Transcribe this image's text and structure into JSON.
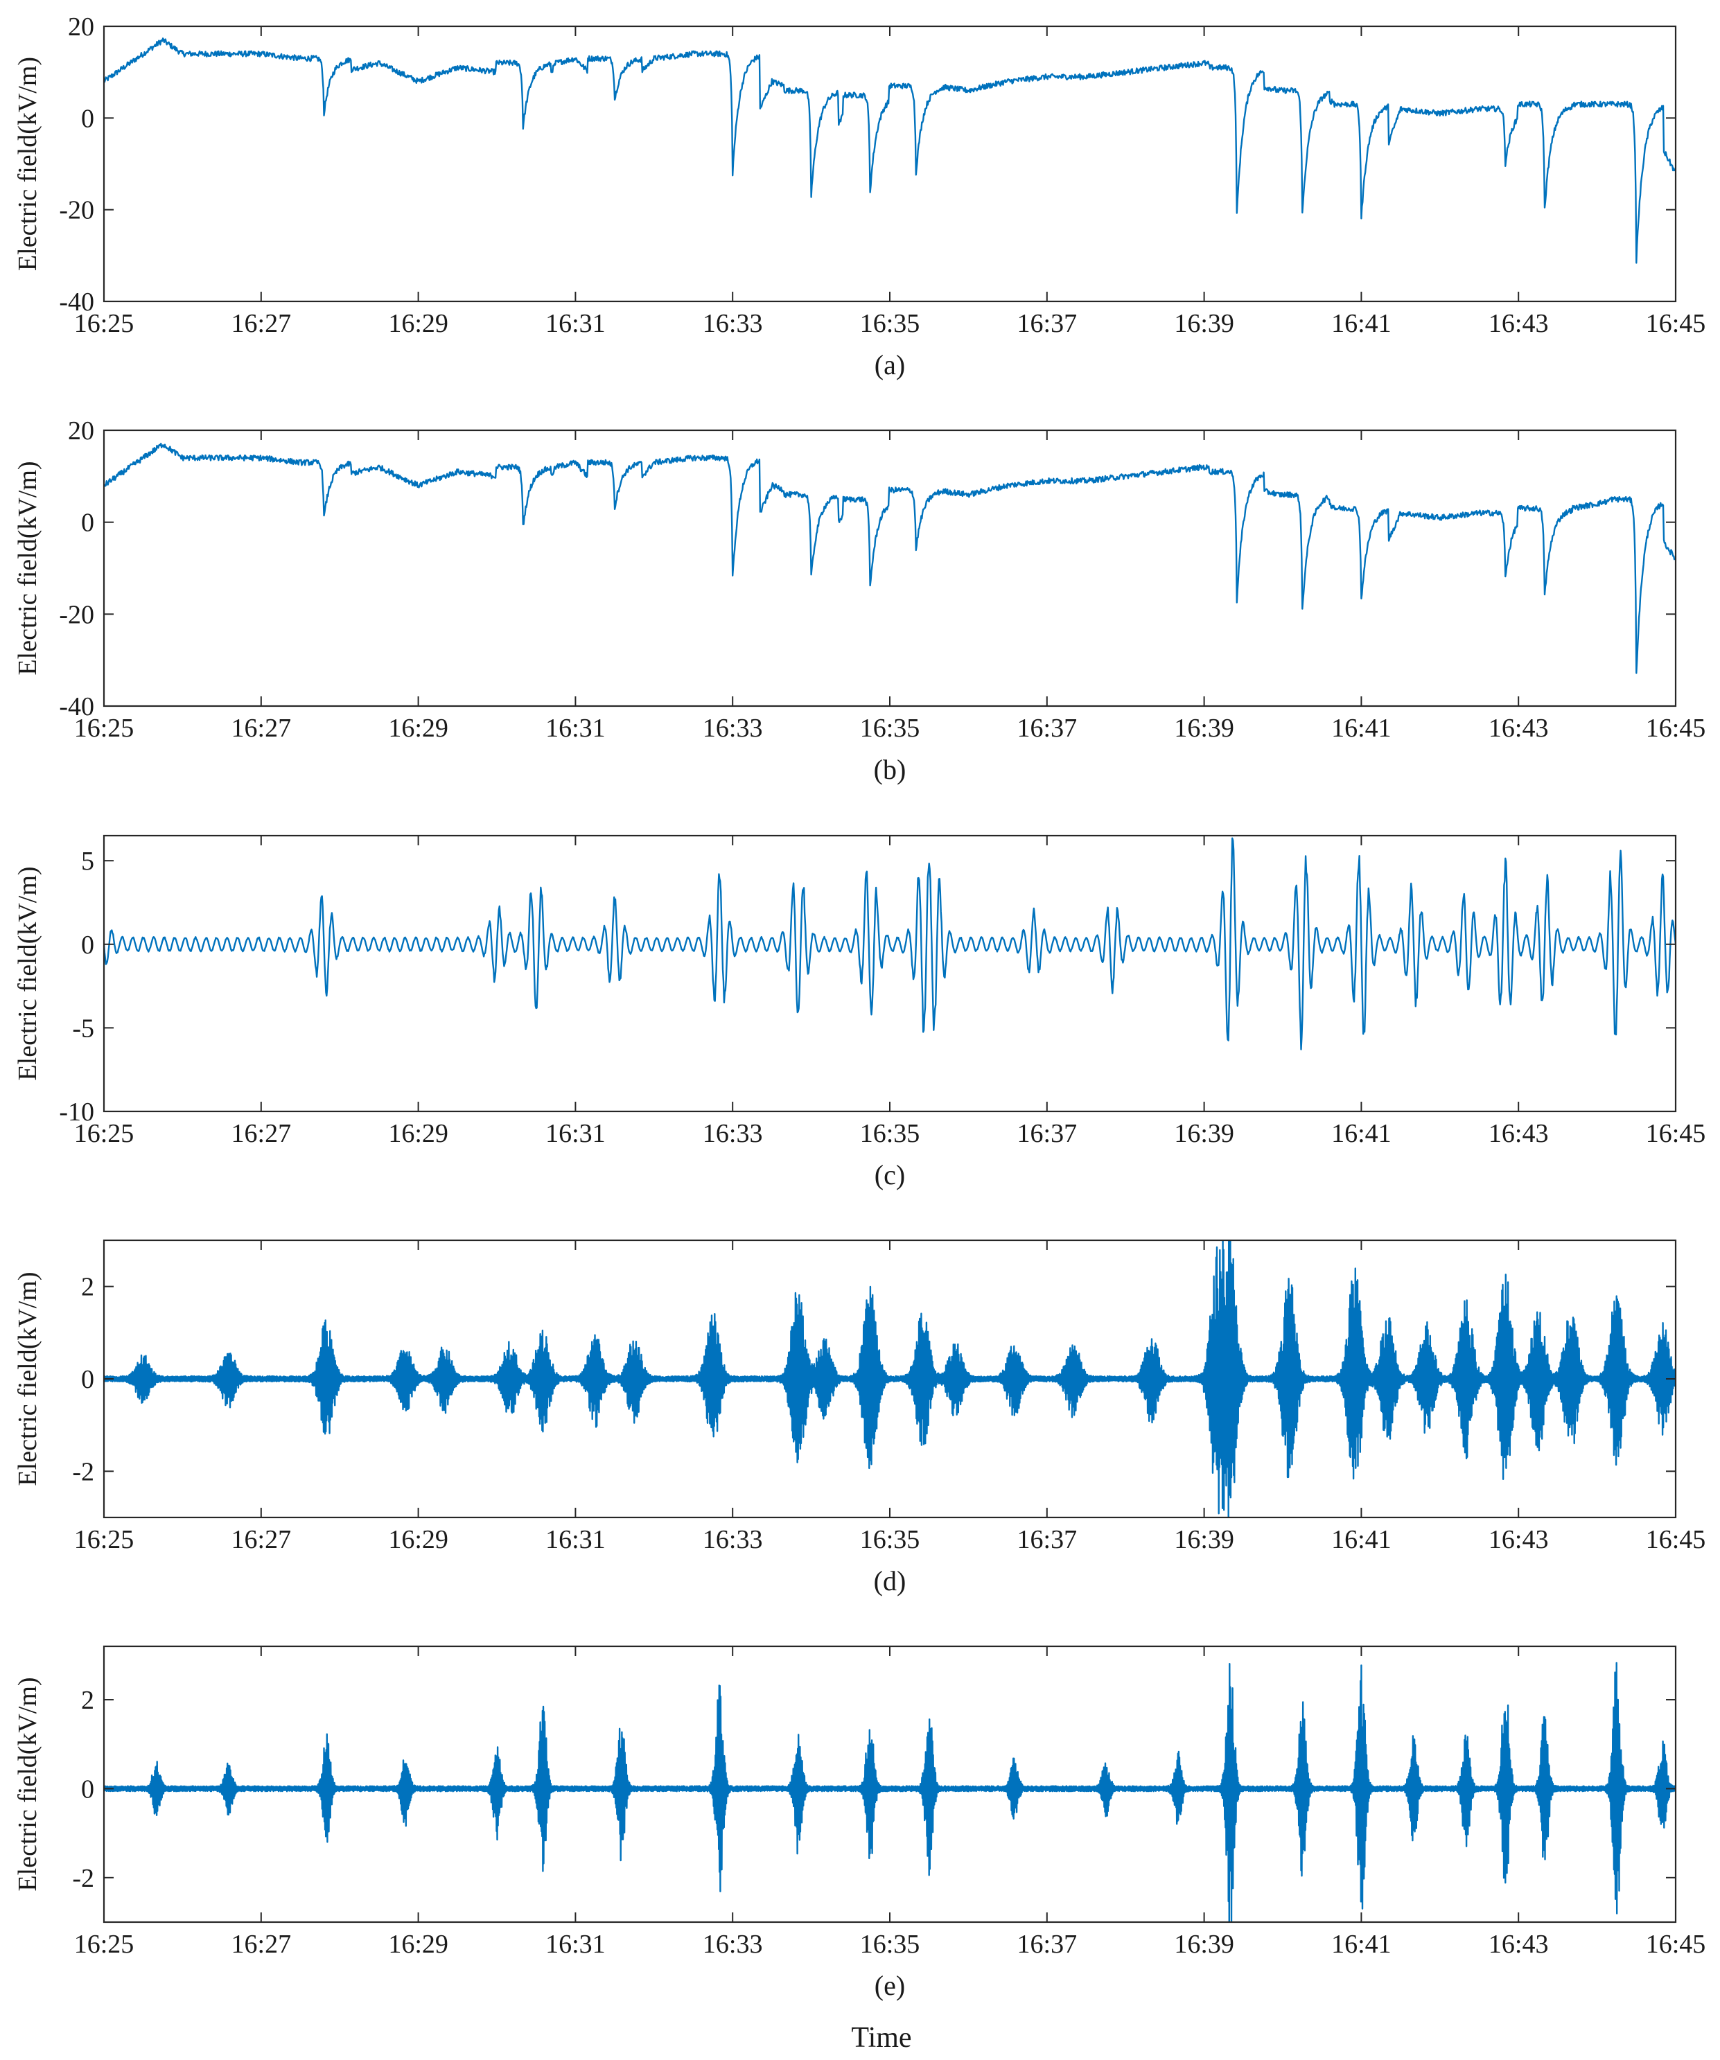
{
  "figure": {
    "x_title": "Time",
    "line_color": "#0072BD"
  },
  "chart_data": [
    {
      "type": "line",
      "caption": "(a)",
      "title": "",
      "xlabel": "",
      "ylabel": "Electric field(kV/m)",
      "x_unit": "time (hh:mm)",
      "xlim": [
        "16:25",
        "16:45"
      ],
      "x_ticks": [
        "16:25",
        "16:27",
        "16:29",
        "16:31",
        "16:33",
        "16:35",
        "16:37",
        "16:39",
        "16:41",
        "16:43",
        "16:45"
      ],
      "ylim": [
        -40,
        20
      ],
      "y_ticks": [
        "-40",
        "-20",
        "0",
        "20"
      ],
      "grid": false,
      "series": [
        {
          "x": [
            "16:25:00",
            "16:25:45",
            "16:26:00",
            "16:26:30",
            "16:27:00",
            "16:27:30",
            "16:27:48",
            "16:28:00",
            "16:28:30",
            "16:29:00",
            "16:29:30",
            "16:30:00",
            "16:30:20",
            "16:30:45",
            "16:31:00",
            "16:31:30",
            "16:32:00",
            "16:32:30",
            "16:32:50",
            "16:33:00",
            "16:33:30",
            "16:33:50",
            "16:34:00",
            "16:34:30",
            "16:34:45",
            "16:35:00",
            "16:35:20",
            "16:35:35",
            "16:36:00",
            "16:36:30",
            "16:37:00",
            "16:37:30",
            "16:38:00",
            "16:38:30",
            "16:39:00",
            "16:39:15",
            "16:39:25",
            "16:39:40",
            "16:40:00",
            "16:40:15",
            "16:40:30",
            "16:40:50",
            "16:41:00",
            "16:41:30",
            "16:42:00",
            "16:42:30",
            "16:42:50",
            "16:43:00",
            "16:43:20",
            "16:43:40",
            "16:44:00",
            "16:44:15",
            "16:44:30",
            "16:44:45",
            "16:45:00"
          ],
          "y": [
            8,
            17,
            14,
            14,
            14,
            13,
            1,
            10,
            12,
            8,
            11,
            10,
            -2,
            12,
            13,
            4,
            13,
            14,
            14,
            -12,
            8,
            6,
            -17,
            5,
            -16,
            4,
            -12,
            7,
            6,
            8,
            9,
            9,
            10,
            11,
            12,
            11,
            -21,
            7,
            6,
            -21,
            4,
            3,
            -22,
            2,
            1,
            2,
            -10,
            2,
            -20,
            3,
            3,
            3,
            -31,
            -4,
            -12
          ]
        }
      ]
    },
    {
      "type": "line",
      "caption": "(b)",
      "title": "",
      "xlabel": "",
      "ylabel": "Electric field(kV/m)",
      "x_unit": "time (hh:mm)",
      "xlim": [
        "16:25",
        "16:45"
      ],
      "x_ticks": [
        "16:25",
        "16:27",
        "16:29",
        "16:31",
        "16:33",
        "16:35",
        "16:37",
        "16:39",
        "16:41",
        "16:43",
        "16:45"
      ],
      "ylim": [
        -40,
        20
      ],
      "y_ticks": [
        "-40",
        "-20",
        "0",
        "20"
      ],
      "grid": false,
      "series": [
        {
          "x": [
            "16:25:00",
            "16:25:45",
            "16:26:00",
            "16:26:30",
            "16:27:00",
            "16:27:30",
            "16:27:48",
            "16:28:00",
            "16:28:30",
            "16:29:00",
            "16:29:30",
            "16:30:00",
            "16:30:20",
            "16:30:45",
            "16:31:00",
            "16:31:30",
            "16:32:00",
            "16:32:30",
            "16:32:50",
            "16:33:00",
            "16:33:30",
            "16:33:50",
            "16:34:00",
            "16:34:30",
            "16:34:45",
            "16:35:00",
            "16:35:20",
            "16:35:35",
            "16:36:00",
            "16:36:30",
            "16:37:00",
            "16:37:30",
            "16:38:00",
            "16:38:30",
            "16:39:00",
            "16:39:15",
            "16:39:25",
            "16:39:40",
            "16:40:00",
            "16:40:15",
            "16:40:30",
            "16:40:50",
            "16:41:00",
            "16:41:30",
            "16:42:00",
            "16:42:30",
            "16:42:50",
            "16:43:00",
            "16:43:20",
            "16:43:40",
            "16:44:00",
            "16:44:15",
            "16:44:30",
            "16:44:45",
            "16:45:00"
          ],
          "y": [
            8,
            17,
            14,
            14,
            14,
            13,
            1,
            10,
            12,
            8,
            11,
            10,
            -1,
            12,
            13,
            3,
            13,
            14,
            14,
            -12,
            8,
            6,
            -12,
            5,
            -14,
            4,
            -6,
            7,
            6,
            8,
            9,
            9,
            10,
            11,
            12,
            11,
            -17,
            7,
            6,
            -19,
            4,
            3,
            -17,
            2,
            1,
            2,
            -12,
            2,
            -16,
            3,
            4,
            5,
            -33,
            -2,
            -8
          ]
        }
      ]
    },
    {
      "type": "line",
      "caption": "(c)",
      "title": "",
      "xlabel": "",
      "ylabel": "Electric field(kV/m)",
      "x_unit": "time (hh:mm)",
      "xlim": [
        "16:25",
        "16:45"
      ],
      "x_ticks": [
        "16:25",
        "16:27",
        "16:29",
        "16:31",
        "16:33",
        "16:35",
        "16:37",
        "16:39",
        "16:41",
        "16:43",
        "16:45"
      ],
      "ylim": [
        -10,
        6.5
      ],
      "y_ticks": [
        "-10",
        "-5",
        "0",
        "5"
      ],
      "grid": false,
      "series": [
        {
          "x": [
            "16:25:00",
            "16:27:48",
            "16:30:00",
            "16:30:30",
            "16:31:30",
            "16:32:50",
            "16:33:50",
            "16:34:45",
            "16:35:25",
            "16:35:35",
            "16:36:50",
            "16:37:50",
            "16:39:20",
            "16:40:15",
            "16:41:00",
            "16:41:40",
            "16:42:20",
            "16:42:50",
            "16:43:20",
            "16:44:15",
            "16:44:50"
          ],
          "y_peak": [
            1.1,
            3.0,
            2.0,
            3.8,
            2.5,
            4.0,
            4.5,
            5.2,
            4.2,
            4.3,
            1.7,
            2.5,
            6.0,
            5.2,
            6.0,
            3.5,
            3.0,
            4.5,
            3.3,
            6.0,
            3.5
          ],
          "y_trough": [
            -1.0,
            -3.0,
            -2.0,
            -4.5,
            -2.8,
            -4.6,
            -5.0,
            -4.5,
            -5.3,
            -4.3,
            -1.8,
            -2.5,
            -7.7,
            -7.2,
            -6.0,
            -4.0,
            -3.3,
            -5.4,
            -4.9,
            -6.8,
            -4.5
          ]
        }
      ]
    },
    {
      "type": "line",
      "caption": "(d)",
      "title": "",
      "xlabel": "",
      "ylabel": "Electric field(kV/m)",
      "x_unit": "time (hh:mm)",
      "xlim": [
        "16:25",
        "16:45"
      ],
      "x_ticks": [
        "16:25",
        "16:27",
        "16:29",
        "16:31",
        "16:33",
        "16:35",
        "16:37",
        "16:39",
        "16:41",
        "16:43",
        "16:45"
      ],
      "ylim": [
        -3,
        3
      ],
      "y_ticks": [
        "-2",
        "0",
        "2"
      ],
      "grid": false,
      "series": [
        {
          "x": [
            "16:25:30",
            "16:26:35",
            "16:27:50",
            "16:28:50",
            "16:29:20",
            "16:30:10",
            "16:30:35",
            "16:31:15",
            "16:31:45",
            "16:32:45",
            "16:33:50",
            "16:34:10",
            "16:34:45",
            "16:35:25",
            "16:35:50",
            "16:36:35",
            "16:37:20",
            "16:38:20",
            "16:39:10",
            "16:39:20",
            "16:40:05",
            "16:40:55",
            "16:41:20",
            "16:41:50",
            "16:42:20",
            "16:42:50",
            "16:43:15",
            "16:43:40",
            "16:44:15",
            "16:44:50"
          ],
          "amp": [
            0.5,
            0.6,
            1.3,
            0.7,
            0.7,
            0.8,
            1.1,
            1.0,
            0.9,
            1.4,
            2.0,
            0.9,
            2.0,
            1.5,
            0.8,
            0.8,
            0.8,
            1.0,
            2.6,
            2.9,
            2.2,
            2.4,
            1.5,
            1.2,
            1.7,
            2.3,
            1.6,
            1.6,
            1.9,
            1.2
          ]
        }
      ]
    },
    {
      "type": "line",
      "caption": "(e)",
      "title": "",
      "xlabel": "",
      "ylabel": "Electric field(kV/m)",
      "x_unit": "time (hh:mm)",
      "xlim": [
        "16:25",
        "16:45"
      ],
      "x_ticks": [
        "16:25",
        "16:27",
        "16:29",
        "16:31",
        "16:33",
        "16:35",
        "16:37",
        "16:39",
        "16:41",
        "16:43",
        "16:45"
      ],
      "ylim": [
        -3,
        3.2
      ],
      "y_ticks": [
        "-2",
        "0",
        "2"
      ],
      "grid": false,
      "series": [
        {
          "x": [
            "16:25:40",
            "16:26:35",
            "16:27:50",
            "16:28:50",
            "16:30:00",
            "16:30:35",
            "16:31:35",
            "16:32:50",
            "16:33:50",
            "16:34:45",
            "16:35:30",
            "16:36:35",
            "16:37:45",
            "16:38:40",
            "16:39:20",
            "16:40:15",
            "16:41:00",
            "16:41:40",
            "16:42:20",
            "16:42:50",
            "16:43:20",
            "16:44:15",
            "16:44:50"
          ],
          "amp": [
            0.6,
            0.6,
            1.2,
            0.8,
            1.1,
            1.9,
            1.6,
            2.4,
            1.5,
            1.7,
            1.9,
            0.7,
            0.6,
            0.8,
            3.2,
            2.0,
            3.0,
            1.2,
            1.3,
            2.5,
            1.8,
            3.0,
            1.1
          ]
        }
      ]
    }
  ]
}
